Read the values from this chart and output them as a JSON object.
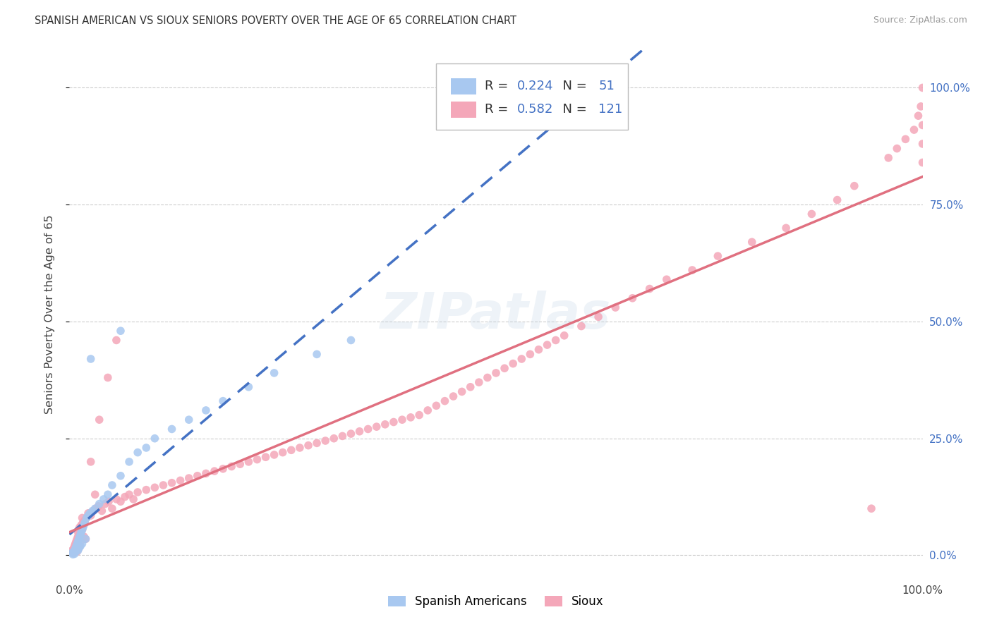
{
  "title": "SPANISH AMERICAN VS SIOUX SENIORS POVERTY OVER THE AGE OF 65 CORRELATION CHART",
  "source": "Source: ZipAtlas.com",
  "ylabel": "Seniors Poverty Over the Age of 65",
  "blue_R": "0.224",
  "blue_N": "51",
  "pink_R": "0.582",
  "pink_N": "121",
  "blue_color": "#A8C8F0",
  "pink_color": "#F4A7B9",
  "blue_line_color": "#4472C4",
  "pink_line_color": "#E07080",
  "background_color": "#FFFFFF",
  "blue_scatter_x": [
    0.003,
    0.004,
    0.005,
    0.006,
    0.006,
    0.007,
    0.007,
    0.008,
    0.008,
    0.009,
    0.009,
    0.01,
    0.01,
    0.01,
    0.011,
    0.011,
    0.012,
    0.012,
    0.013,
    0.013,
    0.014,
    0.015,
    0.015,
    0.016,
    0.017,
    0.018,
    0.019,
    0.02,
    0.022,
    0.024,
    0.027,
    0.03,
    0.035,
    0.04,
    0.045,
    0.05,
    0.06,
    0.07,
    0.08,
    0.09,
    0.1,
    0.12,
    0.14,
    0.16,
    0.18,
    0.21,
    0.24,
    0.29,
    0.33,
    0.06,
    0.025
  ],
  "blue_scatter_y": [
    0.005,
    0.002,
    0.008,
    0.01,
    0.003,
    0.015,
    0.008,
    0.02,
    0.012,
    0.018,
    0.025,
    0.01,
    0.022,
    0.03,
    0.015,
    0.035,
    0.018,
    0.04,
    0.02,
    0.045,
    0.05,
    0.055,
    0.025,
    0.06,
    0.065,
    0.07,
    0.035,
    0.08,
    0.085,
    0.09,
    0.095,
    0.1,
    0.11,
    0.12,
    0.13,
    0.15,
    0.17,
    0.2,
    0.22,
    0.23,
    0.25,
    0.27,
    0.29,
    0.31,
    0.33,
    0.36,
    0.39,
    0.43,
    0.46,
    0.48,
    0.42
  ],
  "pink_scatter_x": [
    0.003,
    0.004,
    0.005,
    0.006,
    0.006,
    0.007,
    0.007,
    0.008,
    0.008,
    0.009,
    0.009,
    0.01,
    0.01,
    0.01,
    0.011,
    0.011,
    0.012,
    0.012,
    0.013,
    0.014,
    0.015,
    0.016,
    0.017,
    0.018,
    0.019,
    0.02,
    0.022,
    0.025,
    0.028,
    0.031,
    0.034,
    0.038,
    0.042,
    0.046,
    0.05,
    0.055,
    0.06,
    0.065,
    0.07,
    0.075,
    0.08,
    0.09,
    0.1,
    0.11,
    0.12,
    0.13,
    0.14,
    0.15,
    0.16,
    0.17,
    0.18,
    0.19,
    0.2,
    0.21,
    0.22,
    0.23,
    0.24,
    0.25,
    0.26,
    0.27,
    0.28,
    0.29,
    0.3,
    0.31,
    0.32,
    0.33,
    0.34,
    0.35,
    0.36,
    0.37,
    0.38,
    0.39,
    0.4,
    0.41,
    0.42,
    0.43,
    0.44,
    0.45,
    0.46,
    0.47,
    0.48,
    0.49,
    0.5,
    0.51,
    0.52,
    0.53,
    0.54,
    0.55,
    0.56,
    0.57,
    0.58,
    0.6,
    0.62,
    0.64,
    0.66,
    0.68,
    0.7,
    0.73,
    0.76,
    0.8,
    0.84,
    0.87,
    0.9,
    0.92,
    0.94,
    0.96,
    0.97,
    0.98,
    0.99,
    0.995,
    0.998,
    1.0,
    1.0,
    1.0,
    1.0,
    0.035,
    0.045,
    0.055,
    0.025,
    0.015,
    0.03
  ],
  "pink_scatter_y": [
    0.01,
    0.005,
    0.015,
    0.02,
    0.008,
    0.025,
    0.012,
    0.03,
    0.018,
    0.035,
    0.008,
    0.04,
    0.025,
    0.05,
    0.015,
    0.055,
    0.02,
    0.06,
    0.03,
    0.065,
    0.055,
    0.07,
    0.04,
    0.075,
    0.035,
    0.08,
    0.09,
    0.085,
    0.095,
    0.1,
    0.105,
    0.095,
    0.11,
    0.115,
    0.1,
    0.12,
    0.115,
    0.125,
    0.13,
    0.12,
    0.135,
    0.14,
    0.145,
    0.15,
    0.155,
    0.16,
    0.165,
    0.17,
    0.175,
    0.18,
    0.185,
    0.19,
    0.195,
    0.2,
    0.205,
    0.21,
    0.215,
    0.22,
    0.225,
    0.23,
    0.235,
    0.24,
    0.245,
    0.25,
    0.255,
    0.26,
    0.265,
    0.27,
    0.275,
    0.28,
    0.285,
    0.29,
    0.295,
    0.3,
    0.31,
    0.32,
    0.33,
    0.34,
    0.35,
    0.36,
    0.37,
    0.38,
    0.39,
    0.4,
    0.41,
    0.42,
    0.43,
    0.44,
    0.45,
    0.46,
    0.47,
    0.49,
    0.51,
    0.53,
    0.55,
    0.57,
    0.59,
    0.61,
    0.64,
    0.67,
    0.7,
    0.73,
    0.76,
    0.79,
    0.1,
    0.85,
    0.87,
    0.89,
    0.91,
    0.94,
    0.96,
    1.0,
    0.92,
    0.88,
    0.84,
    0.29,
    0.38,
    0.46,
    0.2,
    0.08,
    0.13
  ]
}
